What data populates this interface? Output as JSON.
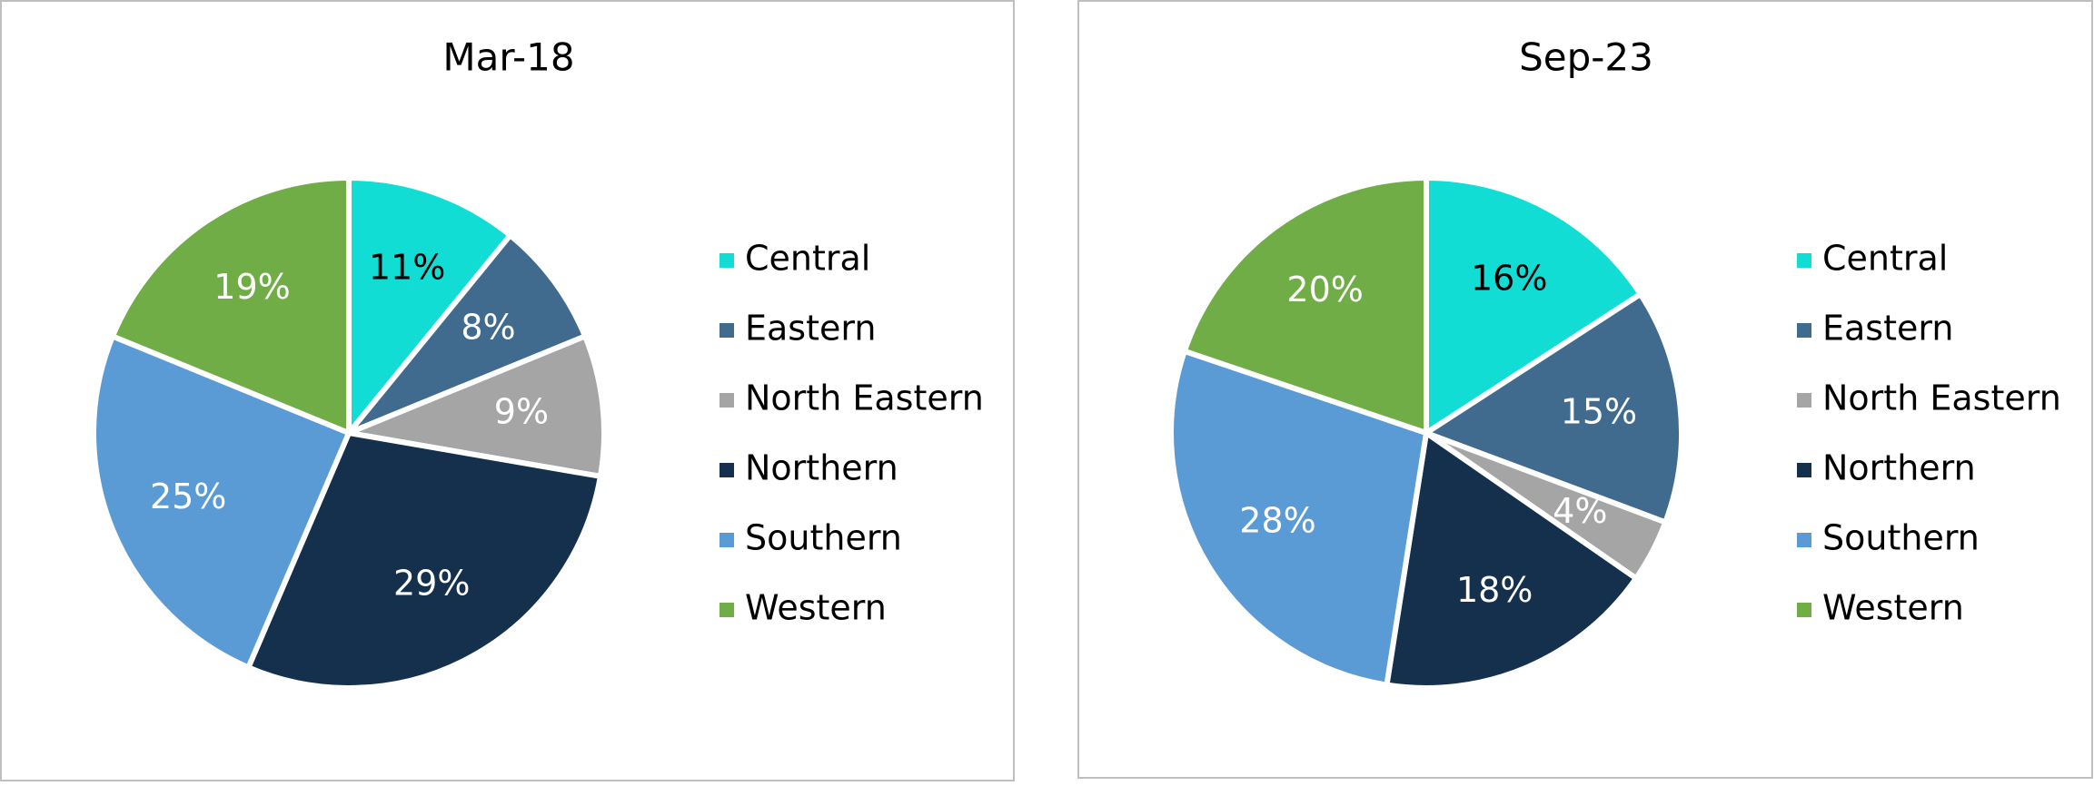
{
  "chart_data": [
    {
      "type": "pie",
      "title": "Mar-18",
      "categories": [
        "Central",
        "Eastern",
        "North Eastern",
        "Northern",
        "Southern",
        "Western"
      ],
      "values": [
        11,
        8,
        9,
        29,
        25,
        19
      ],
      "value_labels": [
        "11%",
        "8%",
        "9%",
        "29%",
        "25%",
        "19%"
      ],
      "colors": [
        "#12ddd5",
        "#406a8e",
        "#a5a5a5",
        "#15304d",
        "#5b9bd5",
        "#70ad47"
      ],
      "label_colors": [
        "#000000",
        "#ffffff",
        "#ffffff",
        "#ffffff",
        "#ffffff",
        "#ffffff"
      ],
      "legend": "right"
    },
    {
      "type": "pie",
      "title": "Sep-23",
      "categories": [
        "Central",
        "Eastern",
        "North Eastern",
        "Northern",
        "Southern",
        "Western"
      ],
      "values": [
        16,
        15,
        4,
        18,
        28,
        20
      ],
      "value_labels": [
        "16%",
        "15%",
        "4%",
        "18%",
        "28%",
        "20%"
      ],
      "colors": [
        "#12ddd5",
        "#406a8e",
        "#a5a5a5",
        "#15304d",
        "#5b9bd5",
        "#70ad47"
      ],
      "label_colors": [
        "#000000",
        "#ffffff",
        "#ffffff",
        "#ffffff",
        "#ffffff",
        "#ffffff"
      ],
      "legend": "right"
    }
  ]
}
